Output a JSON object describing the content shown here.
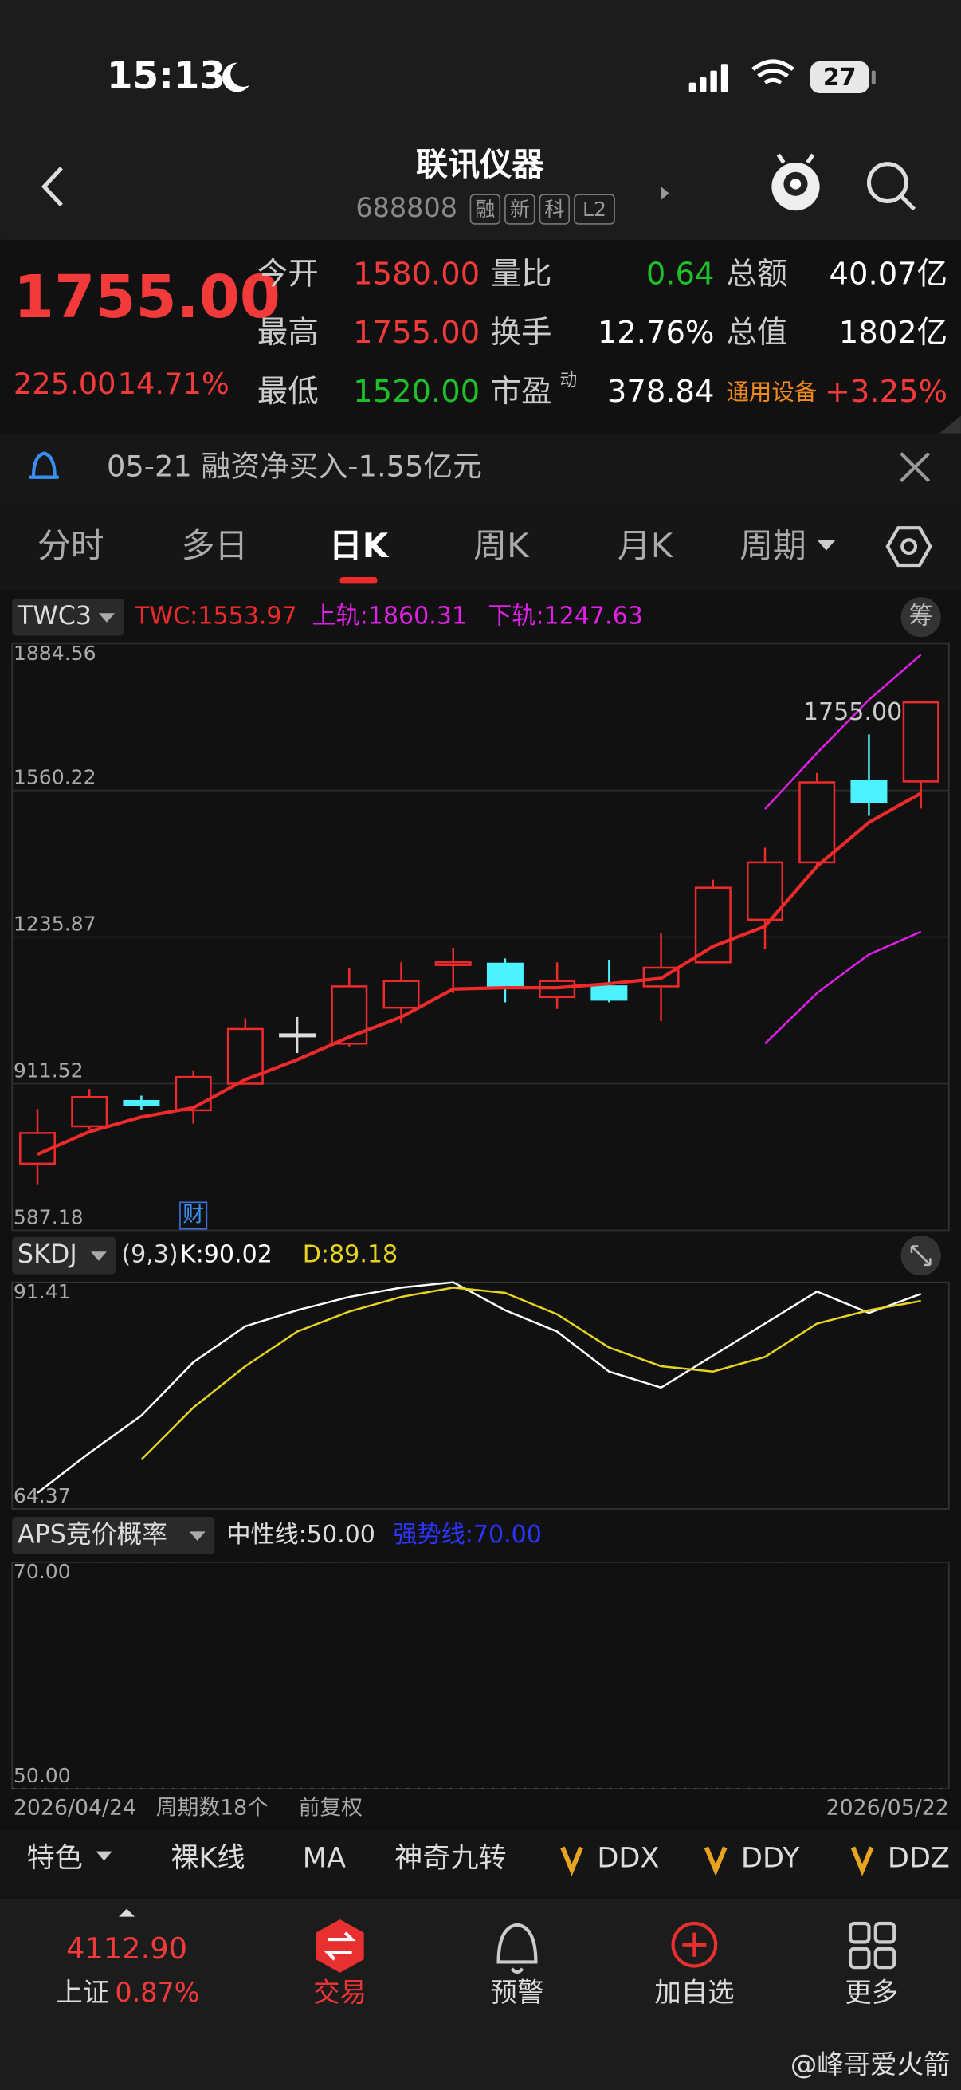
{
  "status_bar": {
    "time": "15:13",
    "battery": "27"
  },
  "header": {
    "title": "联讯仪器",
    "code": "688808",
    "tags": [
      "融",
      "新",
      "科",
      "L2"
    ]
  },
  "quote": {
    "price": "1755.00",
    "change": "225.00",
    "change_pct": "14.71%",
    "stats": [
      {
        "label": "今开",
        "value": "1580.00"
      },
      {
        "label": "量比",
        "value": "0.64"
      },
      {
        "label": "总额",
        "value": "40.07亿"
      },
      {
        "label": "最高",
        "value": "1755.00"
      },
      {
        "label": "换手",
        "value": "12.76%"
      },
      {
        "label": "总值",
        "value": "1802亿"
      },
      {
        "label": "最低",
        "value": "1520.00"
      },
      {
        "label": "市盈",
        "value": "378.84",
        "note": "动"
      },
      {
        "label": "通用设备",
        "value": "+3.25%"
      }
    ]
  },
  "notice": "05-21 融资净买入-1.55亿元",
  "tabs": [
    "分时",
    "多日",
    "日K",
    "周K",
    "月K",
    "周期"
  ],
  "chart_data": [
    {
      "type": "candlestick",
      "indicator": "TWC3",
      "button": "筹",
      "categories": [
        "2026/04/24",
        null,
        null,
        null,
        null,
        null,
        null,
        null,
        null,
        null,
        null,
        null,
        null,
        null,
        null,
        null,
        null,
        "2026/05/22"
      ],
      "open": [
        734.6,
        817.2,
        873.2,
        852.6,
        911.5,
        1020.6,
        1000.0,
        1079.6,
        1173.9,
        1176.9,
        1103.2,
        1126.8,
        1126.8,
        1179.9,
        1274.2,
        1401.0,
        1580.9,
        1580.0
      ],
      "high": [
        855.5,
        899.7,
        885.0,
        941.0,
        1056.0,
        1058.9,
        1168.0,
        1179.9,
        1212.3,
        1188.7,
        1179.9,
        1185.7,
        1244.7,
        1362.7,
        1433.4,
        1598.5,
        1684.1,
        1755.0
      ],
      "low": [
        687.4,
        811.3,
        852.6,
        823.1,
        911.5,
        979.3,
        994.0,
        1044.2,
        1112.0,
        1091.4,
        1076.7,
        1091.4,
        1050.1,
        1179.9,
        1209.3,
        1392.2,
        1504.2,
        1520.0
      ],
      "close": [
        802.4,
        882.0,
        864.3,
        926.3,
        1032.4,
        1020.6,
        1126.8,
        1138.6,
        1179.9,
        1126.8,
        1138.6,
        1097.3,
        1168.1,
        1345.0,
        1401.0,
        1578.0,
        1533.7,
        1755.0
      ],
      "up_color": "#ee2a2a",
      "down_color": "#4cf2ff",
      "flat_color": "#dddddd",
      "series": [
        {
          "name": "TWC:1553.97",
          "color": "#ee2a2a",
          "values": [
            755.2,
            805.4,
            837.8,
            858.4,
            920.4,
            964.6,
            1014.7,
            1058.9,
            1120.9,
            1123.8,
            1123.8,
            1132.7,
            1144.5,
            1215.2,
            1259.5,
            1392.2,
            1489.5,
            1553.97
          ]
        },
        {
          "name": "上轨:1860.31",
          "color": "#e020e6",
          "values": [
            null,
            null,
            null,
            null,
            null,
            null,
            null,
            null,
            null,
            null,
            null,
            null,
            null,
            null,
            1518.9,
            1642.8,
            1760.7,
            1860.31
          ]
        },
        {
          "name": "下轨:1247.63",
          "color": "#e020e6",
          "values": [
            null,
            null,
            null,
            null,
            null,
            null,
            null,
            null,
            null,
            null,
            null,
            null,
            null,
            null,
            1000.0,
            1112.0,
            1197.5,
            1247.63
          ]
        }
      ],
      "annotation": {
        "index": 17,
        "text": "1755.00"
      },
      "marker": {
        "index": 3,
        "text": "财"
      },
      "ylim": [
        587.18,
        1884.56
      ],
      "yticks": [
        1884.56,
        1560.22,
        1235.87,
        911.52,
        587.18
      ],
      "grid": true,
      "footer": {
        "count": "周期数18个",
        "adjust": "前复权"
      }
    },
    {
      "type": "line",
      "indicator": "SKDJ",
      "params": "(9,3)",
      "series": [
        {
          "name": "K:90.02",
          "color": "#ffffff",
          "values": [
            66.28,
            71.05,
            75.5,
            81.87,
            86.16,
            88.07,
            89.66,
            90.77,
            91.41,
            88.07,
            85.53,
            80.75,
            78.84,
            82.66,
            86.48,
            90.3,
            87.75,
            90.02
          ]
        },
        {
          "name": "D:89.18",
          "color": "#e6d420",
          "values": [
            null,
            null,
            70.26,
            76.46,
            81.39,
            85.53,
            87.91,
            89.66,
            90.77,
            90.14,
            87.59,
            83.62,
            81.39,
            80.75,
            82.5,
            86.48,
            88.07,
            89.18
          ]
        }
      ],
      "ylim": [
        64.37,
        91.41
      ],
      "yticks": [
        91.41,
        64.37
      ]
    },
    {
      "type": "line",
      "indicator": "APS竞价概率",
      "reference_lines": [
        {
          "name": "中性线:50.00",
          "value": 50,
          "color": "#ffffff"
        },
        {
          "name": "强势线:70.00",
          "value": 70,
          "color": "#2a35ff"
        }
      ],
      "ylim": [
        50,
        70
      ],
      "yticks": [
        {
          "value": 70,
          "label": "70.00"
        },
        {
          "value": 50,
          "label": "50.00"
        }
      ]
    }
  ],
  "indicator_bar": [
    "特色",
    "裸K线",
    "MA",
    "神奇九转",
    "DDX",
    "DDY",
    "DDZ"
  ],
  "bottom_nav": {
    "index_value": "4112.90",
    "index_name": "上证",
    "index_change": "0.87%",
    "items": [
      "交易",
      "预警",
      "加自选",
      "更多"
    ]
  },
  "watermark": "@峰哥爱火箭"
}
